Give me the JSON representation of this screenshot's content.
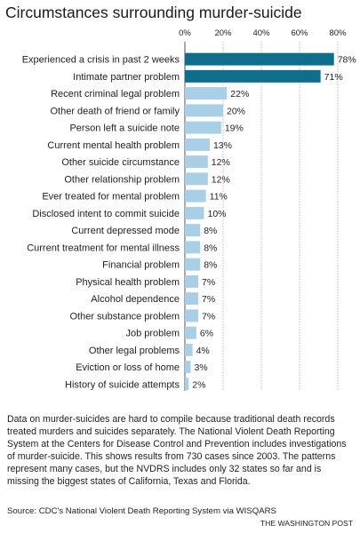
{
  "chart_data": {
    "type": "bar",
    "orientation": "horizontal",
    "title": "Circumstances surrounding murder-suicide",
    "categories": [
      "Experienced a crisis in past 2 weeks",
      "Intimate partner problem",
      "Recent criminal legal problem",
      "Other death of friend or family",
      "Person left a suicide note",
      "Current mental health problem",
      "Other suicide circumstance",
      "Other relationship problem",
      "Ever treated for mental problem",
      "Disclosed intent to commit suicide",
      "Current depressed mode",
      "Current treatment for mental illness",
      "Financial problem",
      "Physical health problem",
      "Alcohol dependence",
      "Other substance problem",
      "Job problem",
      "Other legal problems",
      "Eviction or loss of home",
      "History of suicide attempts"
    ],
    "values": [
      78,
      71,
      22,
      20,
      19,
      13,
      12,
      12,
      11,
      10,
      8,
      8,
      8,
      7,
      7,
      7,
      6,
      4,
      3,
      2
    ],
    "value_labels": [
      "78%",
      "71%",
      "22%",
      "20%",
      "19%",
      "13%",
      "12%",
      "12%",
      "11%",
      "10%",
      "8%",
      "8%",
      "8%",
      "7%",
      "7%",
      "7%",
      "6%",
      "4%",
      "3%",
      "2%"
    ],
    "highlight_count": 2,
    "xlim": [
      0,
      80
    ],
    "xticks": [
      0,
      20,
      40,
      60,
      80
    ],
    "xtick_labels": [
      "0%",
      "20%",
      "40%",
      "60%",
      "80%"
    ],
    "xlabel": "",
    "ylabel": "",
    "grid": true,
    "axis_position": "top",
    "legend": "none",
    "colors": {
      "highlight": "#0e6e8c",
      "normal": "#a9cfe6",
      "grid": "#bdbdbd",
      "text": "#222222"
    }
  },
  "note": "Data on murder-suicides are hard to compile because traditional death records treated murders and suicides separately. The National Violent Death Reporting System at the Centers for Disease Control and Prevention includes investigations of murder-suicide. This shows results from 730 cases since 2003. The patterns represent many cases, but the NVDRS includes only 32 states so far and is missing the biggest states of California, Texas and Florida.",
  "source": "Source: CDC's National Violent Death Reporting System via WISQARS",
  "credit": "THE WASHINGTON POST"
}
